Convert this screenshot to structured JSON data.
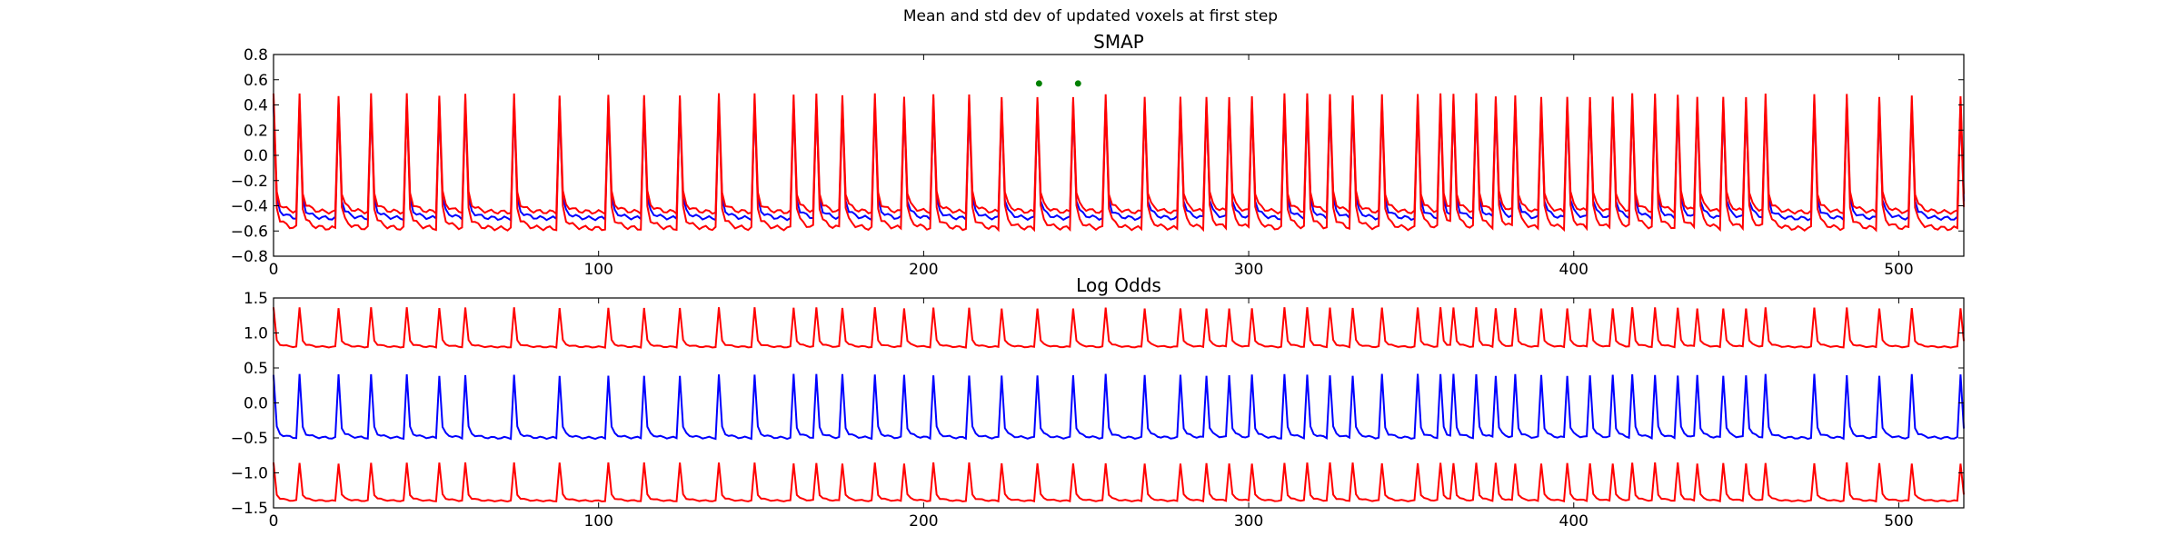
{
  "suptitle": "Mean and std dev of updated voxels at first step",
  "colors": {
    "mean": "#0000ff",
    "std": "#ff0000",
    "marker": "#008000"
  },
  "chart_data": [
    {
      "type": "line",
      "title": "SMAP",
      "xlim": [
        0,
        520
      ],
      "ylim": [
        -0.8,
        0.8
      ],
      "xticks": [
        0,
        100,
        200,
        300,
        400,
        500
      ],
      "yticks": [
        -0.8,
        -0.6,
        -0.4,
        -0.2,
        0.0,
        0.2,
        0.4,
        0.6,
        0.8
      ],
      "ytick_labels": [
        "−0.8",
        "−0.6",
        "−0.4",
        "−0.2",
        "0.0",
        "0.2",
        "0.4",
        "0.6",
        "0.8"
      ],
      "cycle_starts": [
        0,
        8,
        20,
        30,
        41,
        51,
        59,
        74,
        88,
        103,
        114,
        125,
        137,
        148,
        160,
        167,
        175,
        185,
        194,
        203,
        214,
        224,
        235,
        246,
        256,
        268,
        279,
        287,
        294,
        301,
        311,
        318,
        325,
        332,
        341,
        352,
        359,
        363,
        370,
        376,
        382,
        390,
        398,
        405,
        412,
        418,
        425,
        432,
        438,
        446,
        453,
        459,
        474,
        484,
        494,
        504,
        519
      ],
      "series": [
        {
          "name": "",
          "role": "mean",
          "peak": 0.5,
          "floor": -0.5,
          "color": "#0000ff"
        },
        {
          "name": "",
          "role": "mean+std",
          "peak": 0.58,
          "floor": -0.45,
          "color": "#ff0000"
        },
        {
          "name": "",
          "role": "mean-std",
          "peak": 0.55,
          "floor": -0.58,
          "color": "#ff0000"
        }
      ],
      "markers": [
        {
          "x": 235.5,
          "y": 0.57
        },
        {
          "x": 247.5,
          "y": 0.57
        }
      ]
    },
    {
      "type": "line",
      "title": "Log Odds",
      "xlim": [
        0,
        520
      ],
      "ylim": [
        -1.5,
        1.5
      ],
      "xticks": [
        0,
        100,
        200,
        300,
        400,
        500
      ],
      "yticks": [
        -1.5,
        -1.0,
        -0.5,
        0.0,
        0.5,
        1.0,
        1.5
      ],
      "ytick_labels": [
        "−1.5",
        "−1.0",
        "−0.5",
        "0.0",
        "0.5",
        "1.0",
        "1.5"
      ],
      "cycle_starts": [
        0,
        8,
        20,
        30,
        41,
        51,
        59,
        74,
        88,
        103,
        114,
        125,
        137,
        148,
        160,
        167,
        175,
        185,
        194,
        203,
        214,
        224,
        235,
        246,
        256,
        268,
        279,
        287,
        294,
        301,
        311,
        318,
        325,
        332,
        341,
        352,
        359,
        363,
        370,
        376,
        382,
        390,
        398,
        405,
        412,
        418,
        425,
        432,
        438,
        446,
        453,
        459,
        474,
        484,
        494,
        504,
        519
      ],
      "series": [
        {
          "name": "",
          "role": "mean",
          "peak": 0.5,
          "floor": -0.5,
          "color": "#0000ff"
        },
        {
          "name": "",
          "role": "mean+std",
          "peak": 1.42,
          "floor": 0.8,
          "color": "#ff0000"
        },
        {
          "name": "",
          "role": "mean-std",
          "peak": -0.8,
          "floor": -1.4,
          "color": "#ff0000"
        }
      ],
      "markers": []
    }
  ]
}
